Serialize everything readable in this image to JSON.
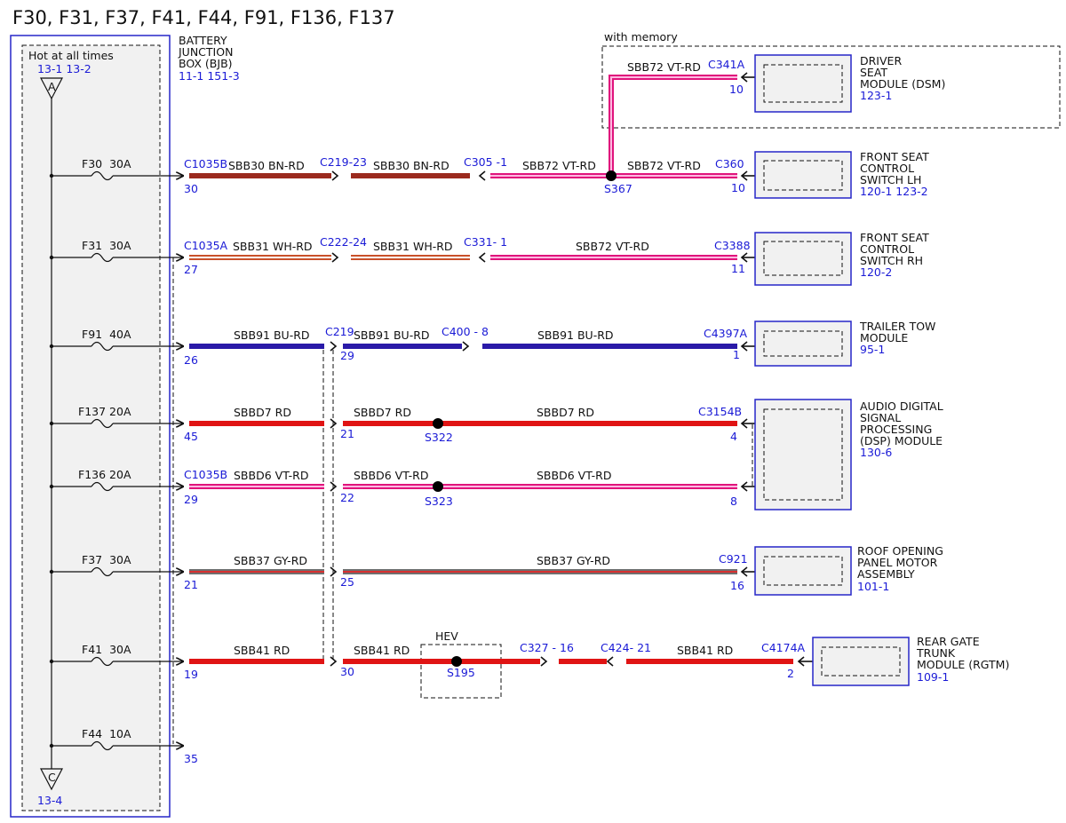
{
  "title": "F30, F31, F37, F41, F44, F91, F136, F137",
  "bjb": {
    "name_lines": [
      "BATTERY",
      "JUNCTION",
      "BOX (BJB)"
    ],
    "refs": "11-1   151-3",
    "hot_label": "Hot at all times",
    "hot_refs": "13-1   13-2",
    "top_connector": "A",
    "bottom_connector": "C",
    "bottom_ref": "13-4"
  },
  "memory_label": "with memory",
  "hev_label": "HEV",
  "fuses": [
    {
      "name": "F30",
      "rating": "30A"
    },
    {
      "name": "F31",
      "rating": "30A"
    },
    {
      "name": "F91",
      "rating": "40A"
    },
    {
      "name": "F137",
      "rating": "20A"
    },
    {
      "name": "F136",
      "rating": "20A"
    },
    {
      "name": "F37",
      "rating": "30A"
    },
    {
      "name": "F41",
      "rating": "30A"
    },
    {
      "name": "F44",
      "rating": "10A"
    }
  ],
  "connector_labels": [
    {
      "id": "c1",
      "text": "C1035B"
    },
    {
      "id": "c2",
      "text": "C219-23"
    },
    {
      "id": "c3",
      "text": "C305 -1"
    },
    {
      "id": "c4",
      "text": "C341A"
    },
    {
      "id": "c5",
      "text": "C360"
    },
    {
      "id": "c6",
      "text": "C1035A"
    },
    {
      "id": "c7",
      "text": "C222-24"
    },
    {
      "id": "c8",
      "text": "C331- 1"
    },
    {
      "id": "c9",
      "text": "C3388"
    },
    {
      "id": "c10",
      "text": "C219"
    },
    {
      "id": "c11",
      "text": "C400 - 8"
    },
    {
      "id": "c12",
      "text": "C4397A"
    },
    {
      "id": "c13",
      "text": "C3154B"
    },
    {
      "id": "c14",
      "text": "C1035B"
    },
    {
      "id": "c15",
      "text": "C921"
    },
    {
      "id": "c16",
      "text": "C327 - 16"
    },
    {
      "id": "c17",
      "text": "C424- 21"
    },
    {
      "id": "c18",
      "text": "C4174A"
    }
  ],
  "pins": [
    {
      "id": "p1",
      "text": "30"
    },
    {
      "id": "p2",
      "text": "27"
    },
    {
      "id": "p3",
      "text": "26"
    },
    {
      "id": "p4",
      "text": "29"
    },
    {
      "id": "p5",
      "text": "45"
    },
    {
      "id": "p6",
      "text": "21"
    },
    {
      "id": "p7",
      "text": "29"
    },
    {
      "id": "p8",
      "text": "22"
    },
    {
      "id": "p9",
      "text": "21"
    },
    {
      "id": "p10",
      "text": "25"
    },
    {
      "id": "p11",
      "text": "19"
    },
    {
      "id": "p12",
      "text": "30"
    },
    {
      "id": "p13",
      "text": "35"
    },
    {
      "id": "p14",
      "text": "10"
    },
    {
      "id": "p15",
      "text": "10"
    },
    {
      "id": "p16",
      "text": "11"
    },
    {
      "id": "p17",
      "text": "1"
    },
    {
      "id": "p18",
      "text": "4"
    },
    {
      "id": "p19",
      "text": "8"
    },
    {
      "id": "p20",
      "text": "16"
    },
    {
      "id": "p21",
      "text": "2"
    }
  ],
  "wire_labels": [
    {
      "id": "w1",
      "text": "SBB30   BN-RD"
    },
    {
      "id": "w2",
      "text": "SBB30   BN-RD"
    },
    {
      "id": "w3",
      "text": "SBB72   VT-RD"
    },
    {
      "id": "w4",
      "text": "SBB72   VT-RD"
    },
    {
      "id": "w5",
      "text": "SBB72   VT-RD"
    },
    {
      "id": "w6",
      "text": "SBB31   WH-RD"
    },
    {
      "id": "w7",
      "text": "SBB31   WH-RD"
    },
    {
      "id": "w8",
      "text": "SBB72   VT-RD"
    },
    {
      "id": "w9",
      "text": "SBB91   BU-RD"
    },
    {
      "id": "w10",
      "text": "SBB91   BU-RD"
    },
    {
      "id": "w11",
      "text": "SBB91   BU-RD"
    },
    {
      "id": "w12",
      "text": "SBBD7   RD"
    },
    {
      "id": "w13",
      "text": "SBBD7   RD"
    },
    {
      "id": "w14",
      "text": "SBBD7   RD"
    },
    {
      "id": "w15",
      "text": "SBBD6   VT-RD"
    },
    {
      "id": "w16",
      "text": "SBBD6   VT-RD"
    },
    {
      "id": "w17",
      "text": "SBBD6   VT-RD"
    },
    {
      "id": "w18",
      "text": "SBB37   GY-RD"
    },
    {
      "id": "w19",
      "text": "SBB37   GY-RD"
    },
    {
      "id": "w20",
      "text": "SBB41   RD"
    },
    {
      "id": "w21",
      "text": "SBB41   RD"
    },
    {
      "id": "w22",
      "text": "SBB41   RD"
    }
  ],
  "splices": [
    {
      "id": "s1",
      "text": "S367"
    },
    {
      "id": "s2",
      "text": "S322"
    },
    {
      "id": "s3",
      "text": "S323"
    },
    {
      "id": "s4",
      "text": "S195"
    }
  ],
  "modules": [
    {
      "id": "m1",
      "name_lines": [
        "DRIVER",
        "SEAT",
        "MODULE (DSM)"
      ],
      "ref": "123-1"
    },
    {
      "id": "m2",
      "name_lines": [
        "FRONT SEAT",
        "CONTROL",
        "SWITCH LH"
      ],
      "ref": "120-1 123-2"
    },
    {
      "id": "m3",
      "name_lines": [
        "FRONT SEAT",
        "CONTROL",
        "SWITCH RH"
      ],
      "ref": "120-2"
    },
    {
      "id": "m4",
      "name_lines": [
        "TRAILER TOW",
        "MODULE"
      ],
      "ref": "95-1"
    },
    {
      "id": "m5",
      "name_lines": [
        "AUDIO DIGITAL",
        "SIGNAL",
        "PROCESSING",
        "(DSP) MODULE"
      ],
      "ref": "130-6"
    },
    {
      "id": "m6",
      "name_lines": [
        "ROOF OPENING",
        "PANEL MOTOR",
        "ASSEMBLY"
      ],
      "ref": "101-1"
    },
    {
      "id": "m7",
      "name_lines": [
        "REAR GATE",
        "TRUNK",
        "MODULE (RGTM)"
      ],
      "ref": "109-1"
    }
  ],
  "colors": {
    "brown_red": "#9b2a1e",
    "red": "#e01414",
    "blue": "#2a1aa8",
    "violet_stripe": "#ffb8e0",
    "violet_base": "#e0147c",
    "white_red_base": "#c8502a",
    "grey_red": "#6e6e6e",
    "link_blue": "#1a1ad6"
  }
}
